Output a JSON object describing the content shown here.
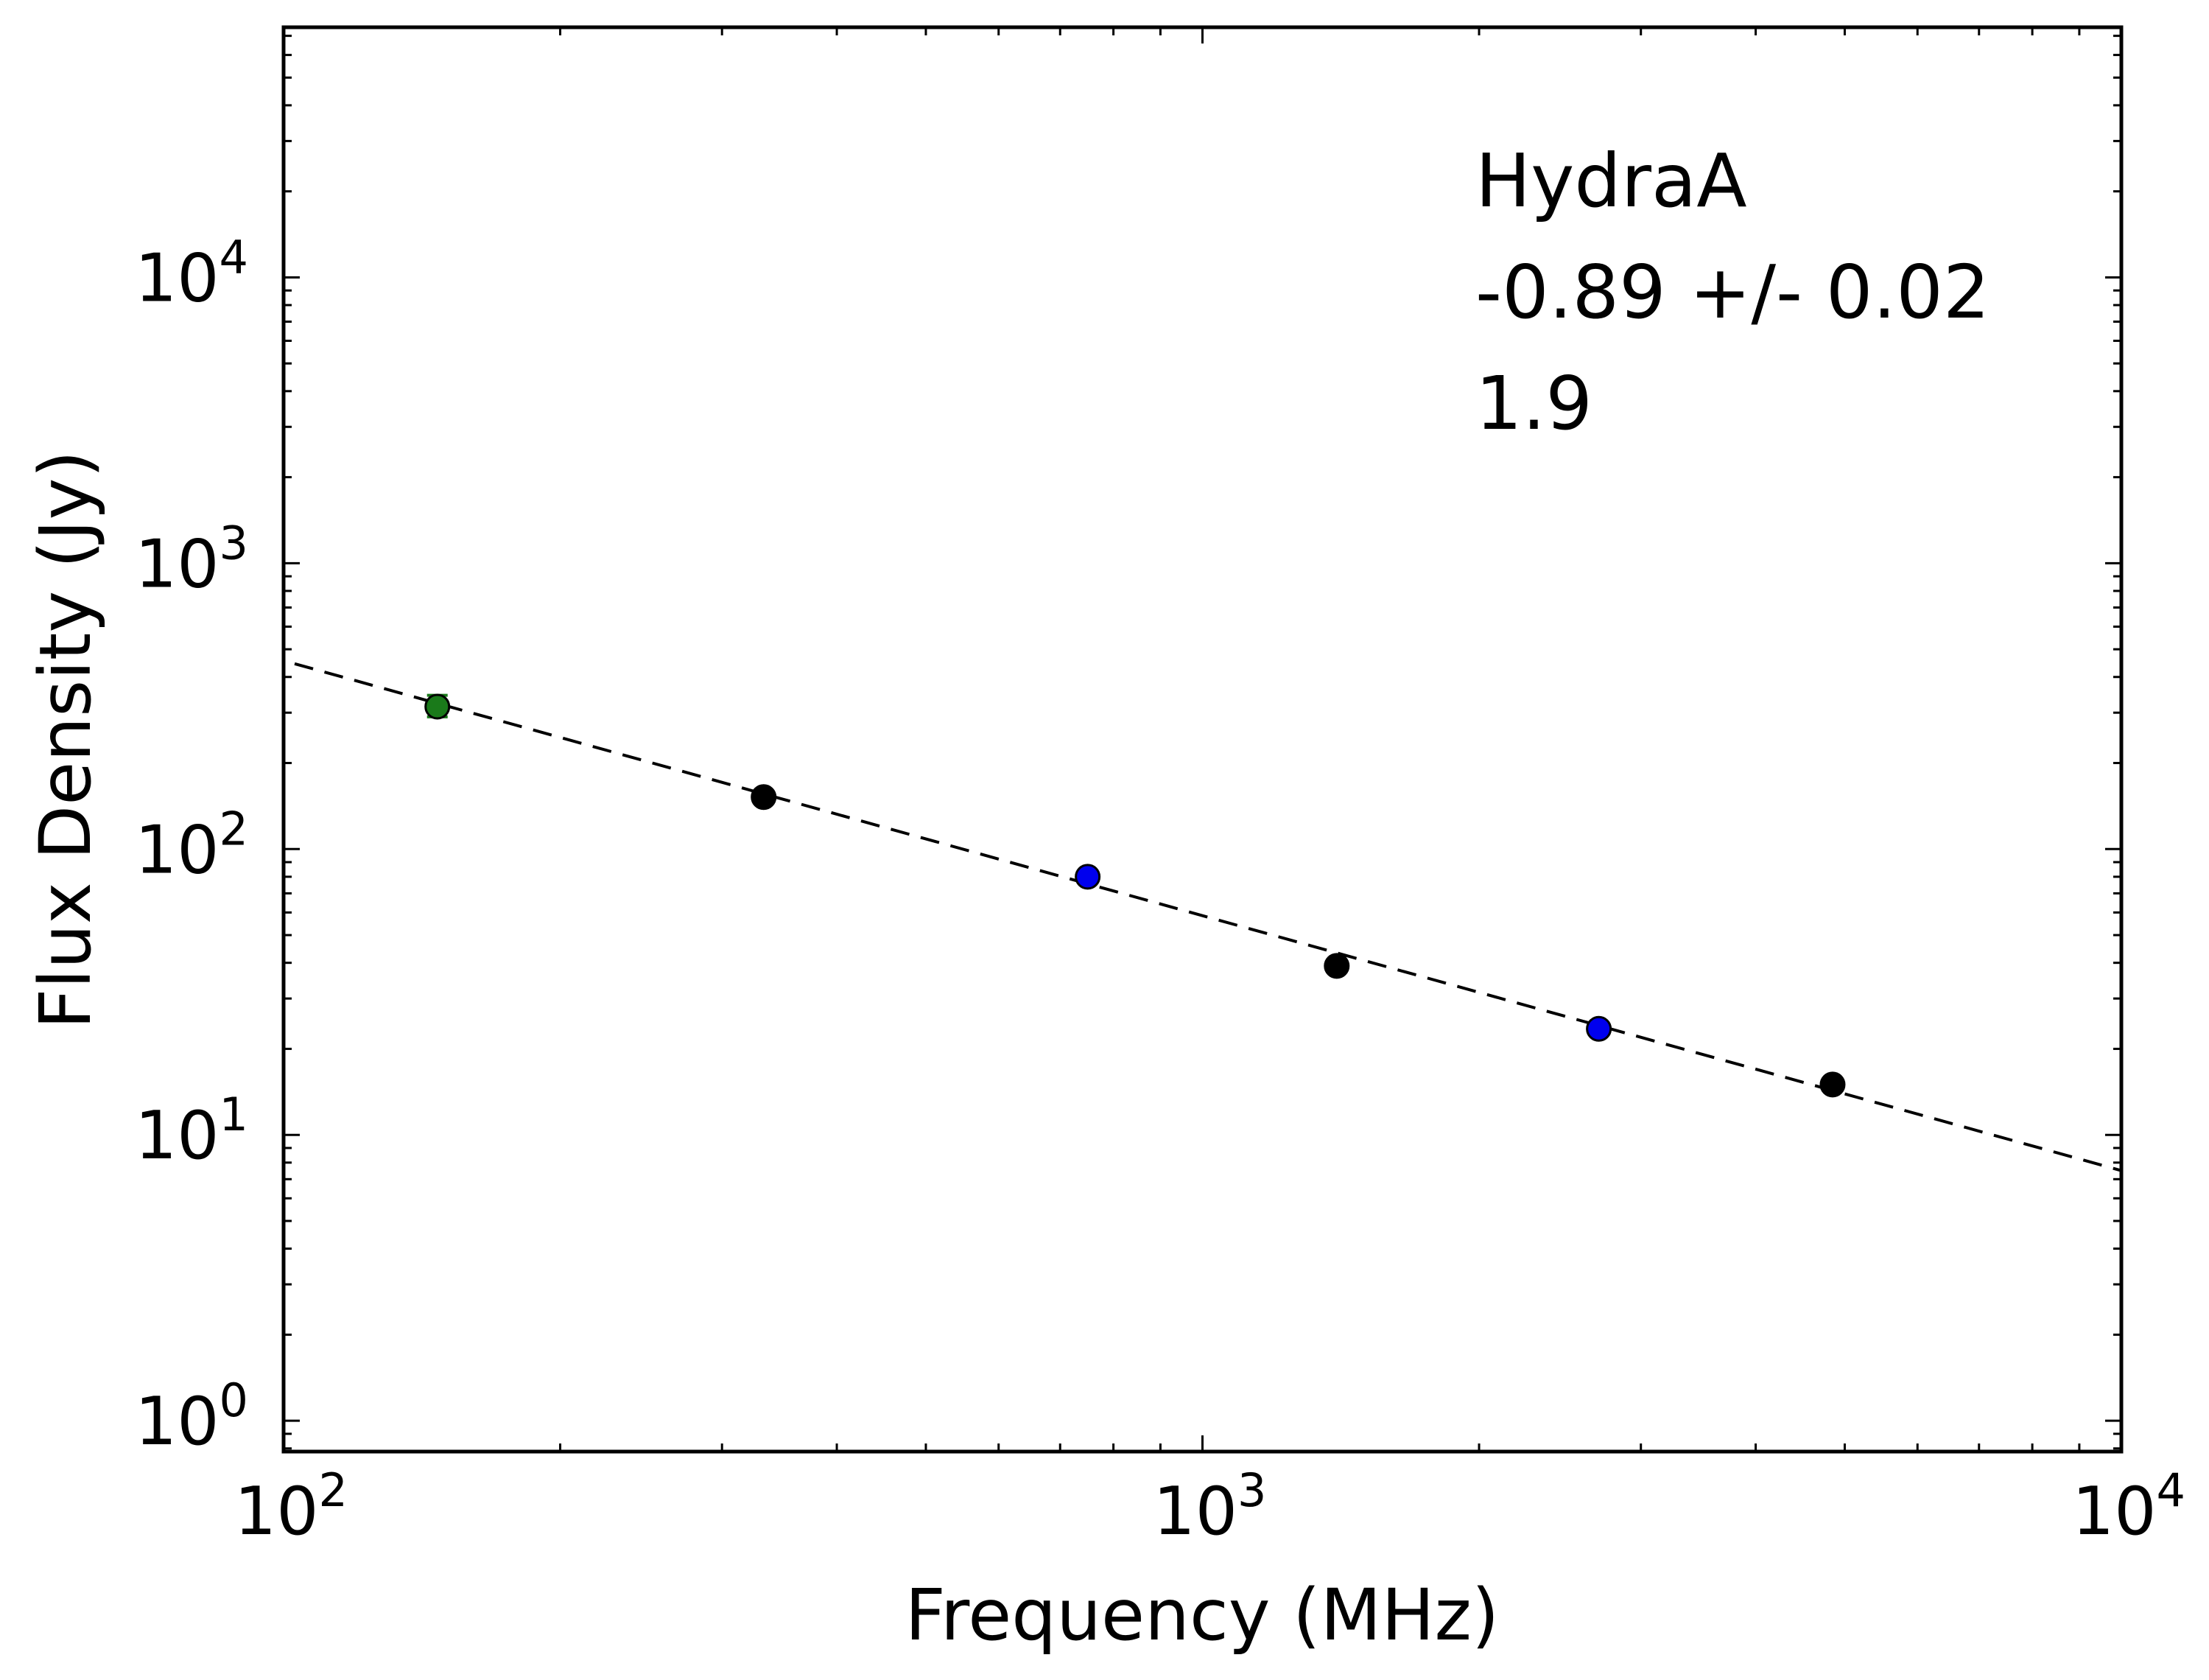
{
  "chart_data": {
    "type": "scatter",
    "title": "",
    "xlabel": "Frequency (MHz)",
    "ylabel": "Flux Density (Jy)",
    "x_scale": "log",
    "y_scale": "log",
    "xlim": [
      100,
      10000
    ],
    "ylim": [
      0.78,
      75000
    ],
    "grid": false,
    "x_ticks": [
      {
        "value": 100,
        "base": "10",
        "exp": "2"
      },
      {
        "value": 1000,
        "base": "10",
        "exp": "3"
      },
      {
        "value": 10000,
        "base": "10",
        "exp": "4"
      }
    ],
    "y_ticks": [
      {
        "value": 1,
        "base": "10",
        "exp": "0"
      },
      {
        "value": 10,
        "base": "10",
        "exp": "1"
      },
      {
        "value": 100,
        "base": "10",
        "exp": "2"
      },
      {
        "value": 1000,
        "base": "10",
        "exp": "3"
      },
      {
        "value": 10000,
        "base": "10",
        "exp": "4"
      }
    ],
    "annotations": [
      "HydraA",
      "-0.89 +/- 0.02",
      "1.9"
    ],
    "points": [
      {
        "x": 147,
        "y": 315,
        "color": "#1a7a1a",
        "err_low": 290,
        "err_high": 345
      },
      {
        "x": 333,
        "y": 152,
        "color": "#000000"
      },
      {
        "x": 750,
        "y": 80,
        "color": "#0000ee"
      },
      {
        "x": 1400,
        "y": 39,
        "color": "#000000"
      },
      {
        "x": 2700,
        "y": 23.5,
        "color": "#0000ee"
      },
      {
        "x": 4850,
        "y": 15,
        "color": "#000000"
      }
    ],
    "fit_line": {
      "x": [
        100,
        10000
      ],
      "y": [
        445,
        7.5
      ],
      "style": "dashed",
      "color": "#000000"
    }
  }
}
